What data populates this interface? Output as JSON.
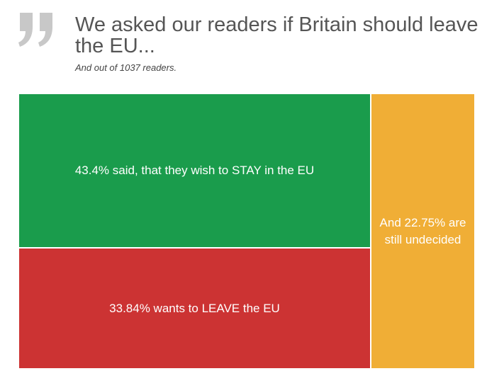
{
  "header": {
    "quote_icon": "quote-mark-icon",
    "title": "We asked our readers if Britain should leave the EU...",
    "subtitle": "And out of 1037 readers."
  },
  "colors": {
    "stay": "#1a9c4c",
    "leave": "#cc3333",
    "undecided": "#f0ae36",
    "quote": "#c8c8c8",
    "title": "#555555"
  },
  "chart_data": {
    "type": "treemap",
    "title": "We asked our readers if Britain should leave the EU...",
    "subtitle": "And out of 1037 readers.",
    "total_readers": 1037,
    "categories": [
      "Stay",
      "Leave",
      "Undecided"
    ],
    "values": [
      43.4,
      33.84,
      22.75
    ],
    "unit": "%",
    "tiles": [
      {
        "key": "stay",
        "value": 43.4,
        "label": "43.4% said, that they wish to STAY in the EU",
        "color": "#1a9c4c"
      },
      {
        "key": "leave",
        "value": 33.84,
        "label": "33.84% wants to LEAVE the EU",
        "color": "#cc3333"
      },
      {
        "key": "undecided",
        "value": 22.75,
        "label": "And 22.75% are still undecided",
        "color": "#f0ae36"
      }
    ]
  }
}
